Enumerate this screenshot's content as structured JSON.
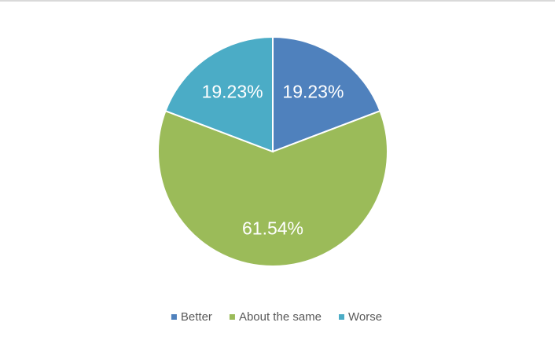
{
  "chart_data": {
    "type": "pie",
    "categories": [
      "Better",
      "About the same",
      "Worse"
    ],
    "values": [
      19.23,
      61.54,
      19.23
    ],
    "value_labels": [
      "19.23%",
      "61.54%",
      "19.23%"
    ],
    "colors": [
      "#4f81bd",
      "#9bbb59",
      "#4bacc6"
    ],
    "legend": "bottom"
  }
}
